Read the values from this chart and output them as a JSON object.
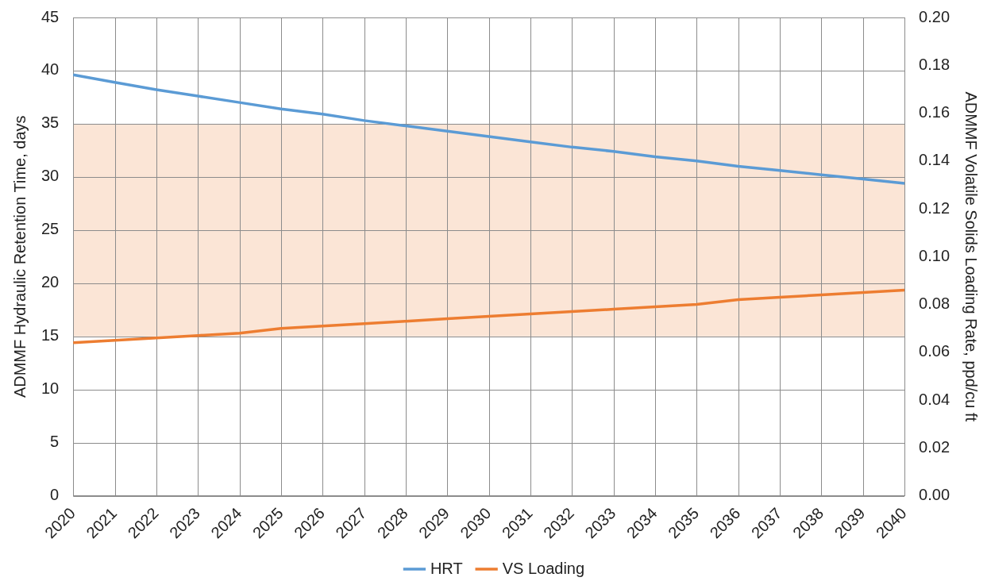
{
  "chart_data": {
    "type": "line",
    "ylabel": "ADMMF Hydraulic Retention Time, days",
    "y2label": "ADMMF Volatile Solids Loading Rate, ppd/cu ft",
    "categories": [
      "2020",
      "2021",
      "2022",
      "2023",
      "2024",
      "2025",
      "2026",
      "2027",
      "2028",
      "2029",
      "2030",
      "2031",
      "2032",
      "2033",
      "2034",
      "2035",
      "2036",
      "2037",
      "2038",
      "2039",
      "2040"
    ],
    "series": [
      {
        "name": "HRT",
        "color": "#5b9bd5",
        "values": [
          39.6,
          38.9,
          38.2,
          37.6,
          37.0,
          36.4,
          35.9,
          35.3,
          34.8,
          34.3,
          33.8,
          33.3,
          32.8,
          32.4,
          31.9,
          31.5,
          31.0,
          30.6,
          30.2,
          29.8,
          29.4
        ]
      },
      {
        "name": "VS Loading",
        "color": "#ed7d31",
        "axis": "y2",
        "values": [
          0.064,
          0.065,
          0.066,
          0.067,
          0.068,
          0.07,
          0.071,
          0.072,
          0.073,
          0.074,
          0.075,
          0.076,
          0.077,
          0.078,
          0.079,
          0.08,
          0.082,
          0.083,
          0.084,
          0.085,
          0.086
        ]
      }
    ],
    "ylim": [
      0,
      45
    ],
    "yticks": [
      0,
      5,
      10,
      15,
      20,
      25,
      30,
      35,
      40,
      45
    ],
    "y2lim": [
      0,
      0.2
    ],
    "y2ticks": [
      {
        "value": 0,
        "label": "0.00"
      },
      {
        "value": 0.02,
        "label": "0.02"
      },
      {
        "value": 0.04,
        "label": "0.04"
      },
      {
        "value": 0.06,
        "label": "0.06"
      },
      {
        "value": 0.08,
        "label": "0.08"
      },
      {
        "value": 0.1,
        "label": "0.10"
      },
      {
        "value": 0.12,
        "label": "0.12"
      },
      {
        "value": 0.14,
        "label": "0.14"
      },
      {
        "value": 0.16,
        "label": "0.16"
      },
      {
        "value": 0.18,
        "label": "0.18"
      },
      {
        "value": 0.2,
        "label": "0.20"
      }
    ],
    "bands": [
      {
        "axis": "y",
        "from": 15,
        "to": 35,
        "color": "#fbe5d6"
      }
    ],
    "grid": true,
    "legend": "bottom",
    "marker": "none",
    "line_style": "solid"
  }
}
